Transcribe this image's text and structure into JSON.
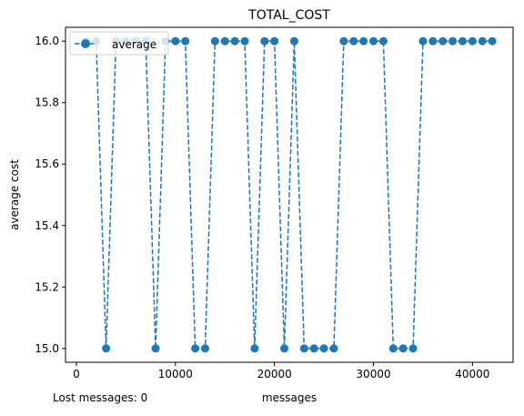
{
  "chart_data": {
    "type": "line",
    "title": "TOTAL_COST",
    "xlabel": "messages",
    "ylabel": "average cost",
    "xlim": [
      -1100,
      44100
    ],
    "ylim": [
      14.955,
      16.045
    ],
    "xticks": [
      0,
      10000,
      20000,
      30000,
      40000
    ],
    "yticks": [
      15.0,
      15.2,
      15.4,
      15.6,
      15.8,
      16.0
    ],
    "xtick_labels": [
      "0",
      "10000",
      "20000",
      "30000",
      "40000"
    ],
    "ytick_labels": [
      "15.0",
      "15.2",
      "15.4",
      "15.6",
      "15.8",
      "16.0"
    ],
    "legend_position": "top-left",
    "grid": false,
    "series": [
      {
        "name": "average",
        "color": "#1f77b4",
        "line_style": "dashed",
        "marker": "circle",
        "x": [
          1000,
          2000,
          3000,
          4000,
          5000,
          6000,
          7000,
          8000,
          9000,
          10000,
          11000,
          12000,
          13000,
          14000,
          15000,
          16000,
          17000,
          18000,
          19000,
          20000,
          21000,
          22000,
          23000,
          24000,
          25000,
          26000,
          27000,
          28000,
          29000,
          30000,
          31000,
          32000,
          33000,
          34000,
          35000,
          36000,
          37000,
          38000,
          39000,
          40000,
          41000,
          42000
        ],
        "y": [
          16,
          16,
          15,
          16,
          16,
          16,
          16,
          15,
          16,
          16,
          16,
          15,
          15,
          16,
          16,
          16,
          16,
          15,
          16,
          16,
          15,
          16,
          15,
          15,
          15,
          15,
          16,
          16,
          16,
          16,
          16,
          15,
          15,
          15,
          16,
          16,
          16,
          16,
          16,
          16,
          16,
          16
        ]
      }
    ]
  },
  "footer": {
    "lost_messages": "Lost messages: 0"
  }
}
